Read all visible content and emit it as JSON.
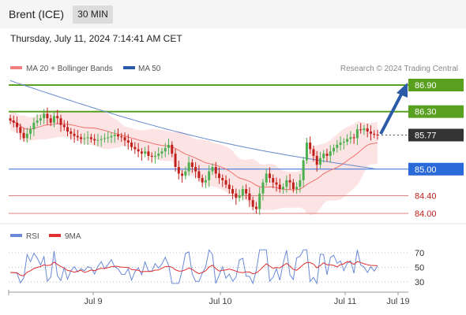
{
  "header": {
    "title": "Brent (ICE)",
    "timeframe": "30 MIN",
    "timestamp": "Thursday, July 11, 2024 7:14:41 AM CET"
  },
  "legend": {
    "ma20": "MA 20 + Bollinger Bands",
    "ma50": "MA 50",
    "credit": "Research © 2024 Trading Central",
    "rsi": "RSI",
    "rsi_ma": "9MA"
  },
  "colors": {
    "resistance": "#5aa020",
    "support": "#2a6ad8",
    "pivot_label": "#333333",
    "minor_level": "#e08080",
    "minor_text": "#c0201c",
    "candle_up": "#4caf50",
    "candle_down": "#c0201c",
    "ma20": "#f07070",
    "ma50": "#6688cc",
    "bollinger_fill": "#fde4e4",
    "arrow": "#2a5aa8",
    "rsi": "#6a8ad8",
    "rsi_ma": "#e03030"
  },
  "chart_data": {
    "type": "candlestick",
    "levels": [
      {
        "value": 86.9,
        "label": "86.90",
        "kind": "resistance"
      },
      {
        "value": 86.3,
        "label": "86.30",
        "kind": "resistance"
      },
      {
        "value": 85.77,
        "label": "85.77",
        "kind": "last_price"
      },
      {
        "value": 85.0,
        "label": "85.00",
        "kind": "support"
      },
      {
        "value": 84.4,
        "label": "84.40",
        "kind": "minor"
      },
      {
        "value": 84.0,
        "label": "84.00",
        "kind": "minor"
      }
    ],
    "x_ticks": [
      "Jul 9",
      "Jul 10",
      "Jul 11",
      "Jul 19"
    ],
    "closes": [
      86.1,
      86.05,
      85.95,
      85.82,
      85.7,
      85.8,
      85.9,
      86.05,
      86.1,
      86.15,
      86.25,
      86.15,
      86.05,
      86.2,
      86.15,
      86.0,
      85.95,
      85.85,
      85.8,
      85.75,
      85.72,
      85.68,
      85.7,
      85.72,
      85.68,
      85.65,
      85.66,
      85.68,
      85.7,
      85.72,
      85.75,
      85.78,
      85.74,
      85.72,
      85.65,
      85.6,
      85.5,
      85.45,
      85.4,
      85.35,
      85.4,
      85.3,
      85.28,
      85.3,
      85.35,
      85.4,
      85.48,
      85.55,
      85.35,
      85.05,
      84.9,
      84.85,
      84.95,
      85.15,
      85.05,
      84.95,
      84.8,
      84.7,
      84.75,
      84.95,
      85.05,
      84.9,
      84.8,
      84.75,
      84.65,
      84.55,
      84.45,
      84.35,
      84.4,
      84.55,
      84.45,
      84.3,
      84.15,
      84.1,
      84.45,
      84.7,
      84.9,
      84.8,
      84.7,
      84.65,
      84.55,
      84.6,
      84.75,
      84.7,
      84.55,
      84.6,
      84.75,
      85.2,
      85.6,
      85.45,
      85.3,
      85.1,
      85.25,
      85.35,
      85.3,
      85.4,
      85.48,
      85.55,
      85.6,
      85.62,
      85.68,
      85.72,
      85.7,
      85.9,
      85.88,
      85.92,
      85.85,
      85.8,
      85.78,
      85.77
    ],
    "ma50": {
      "start": 87.0,
      "end": 85.0
    },
    "rsi_scale": [
      70,
      50,
      30
    ],
    "ylim": [
      83.9,
      87.1
    ]
  }
}
